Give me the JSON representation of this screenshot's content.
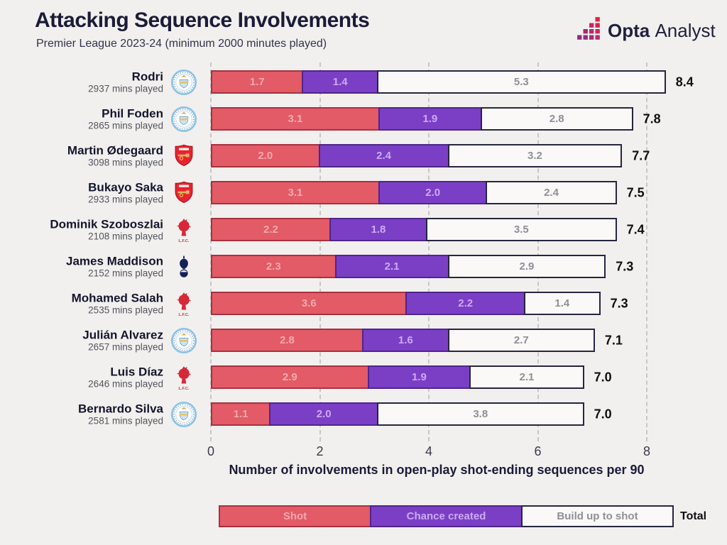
{
  "header": {
    "title": "Attacking Sequence Involvements",
    "subtitle": "Premier League 2023-24 (minimum 2000 minutes played)",
    "logo": {
      "icon": "opta-pixel-stairs-icon",
      "brand_bold": "Opta",
      "brand_light": "Analyst"
    }
  },
  "chart_data": {
    "type": "bar",
    "orientation": "horizontal",
    "stacked": true,
    "title": "Attacking Sequence Involvements",
    "subtitle": "Premier League 2023-24 (minimum 2000 minutes played)",
    "xlabel": "Number of involvements in open-play shot-ending sequences per 90",
    "x_ticks": [
      0,
      2,
      4,
      6,
      8
    ],
    "xlim": [
      0,
      8.5
    ],
    "grid": "dashed-vertical",
    "legend_position": "bottom",
    "series_names": [
      "Shot",
      "Chance created",
      "Build up to shot"
    ],
    "colors": {
      "background": "#f1f0ee",
      "shot_fill": "#e25b66",
      "shot_border": "#a93140",
      "shot_label": "#f2a9b0",
      "chance_fill": "#7b3fc6",
      "chance_border": "#50248c",
      "chance_label": "#cdaaf2",
      "build_fill": "#faf9f8",
      "build_border": "#26263f",
      "build_label": "#8f8f98",
      "grid": "#c9c7c5",
      "title": "#1b1b38"
    },
    "players": [
      {
        "name": "Rodri",
        "mins": "2937 mins played",
        "team": "man-city",
        "badge": "man-city-badge",
        "values": [
          1.7,
          1.4,
          5.3
        ],
        "total": "8.4"
      },
      {
        "name": "Phil Foden",
        "mins": "2865 mins played",
        "team": "man-city",
        "badge": "man-city-badge",
        "values": [
          3.1,
          1.9,
          2.8
        ],
        "total": "7.8"
      },
      {
        "name": "Martin Ødegaard",
        "mins": "3098 mins played",
        "team": "arsenal",
        "badge": "arsenal-badge",
        "values": [
          2.0,
          2.4,
          3.2
        ],
        "total": "7.7"
      },
      {
        "name": "Bukayo Saka",
        "mins": "2933 mins played",
        "team": "arsenal",
        "badge": "arsenal-badge",
        "values": [
          3.1,
          2.0,
          2.4
        ],
        "total": "7.5"
      },
      {
        "name": "Dominik Szoboszlai",
        "mins": "2108 mins played",
        "team": "liverpool",
        "badge": "liverpool-badge",
        "values": [
          2.2,
          1.8,
          3.5
        ],
        "total": "7.4"
      },
      {
        "name": "James Maddison",
        "mins": "2152 mins played",
        "team": "tottenham",
        "badge": "tottenham-badge",
        "values": [
          2.3,
          2.1,
          2.9
        ],
        "total": "7.3"
      },
      {
        "name": "Mohamed Salah",
        "mins": "2535 mins played",
        "team": "liverpool",
        "badge": "liverpool-badge",
        "values": [
          3.6,
          2.2,
          1.4
        ],
        "total": "7.3"
      },
      {
        "name": "Julián Alvarez",
        "mins": "2657 mins played",
        "team": "man-city",
        "badge": "man-city-badge",
        "values": [
          2.8,
          1.6,
          2.7
        ],
        "total": "7.1"
      },
      {
        "name": "Luis Díaz",
        "mins": "2646 mins played",
        "team": "liverpool",
        "badge": "liverpool-badge",
        "values": [
          2.9,
          1.9,
          2.1
        ],
        "total": "7.0"
      },
      {
        "name": "Bernardo Silva",
        "mins": "2581 mins played",
        "team": "man-city",
        "badge": "man-city-badge",
        "values": [
          1.1,
          2.0,
          3.8
        ],
        "total": "7.0"
      }
    ]
  },
  "legend": {
    "items": [
      {
        "label": "Shot",
        "series": "shot"
      },
      {
        "label": "Chance created",
        "series": "chance"
      },
      {
        "label": "Build up to shot",
        "series": "build"
      }
    ],
    "total_label": "Total"
  }
}
